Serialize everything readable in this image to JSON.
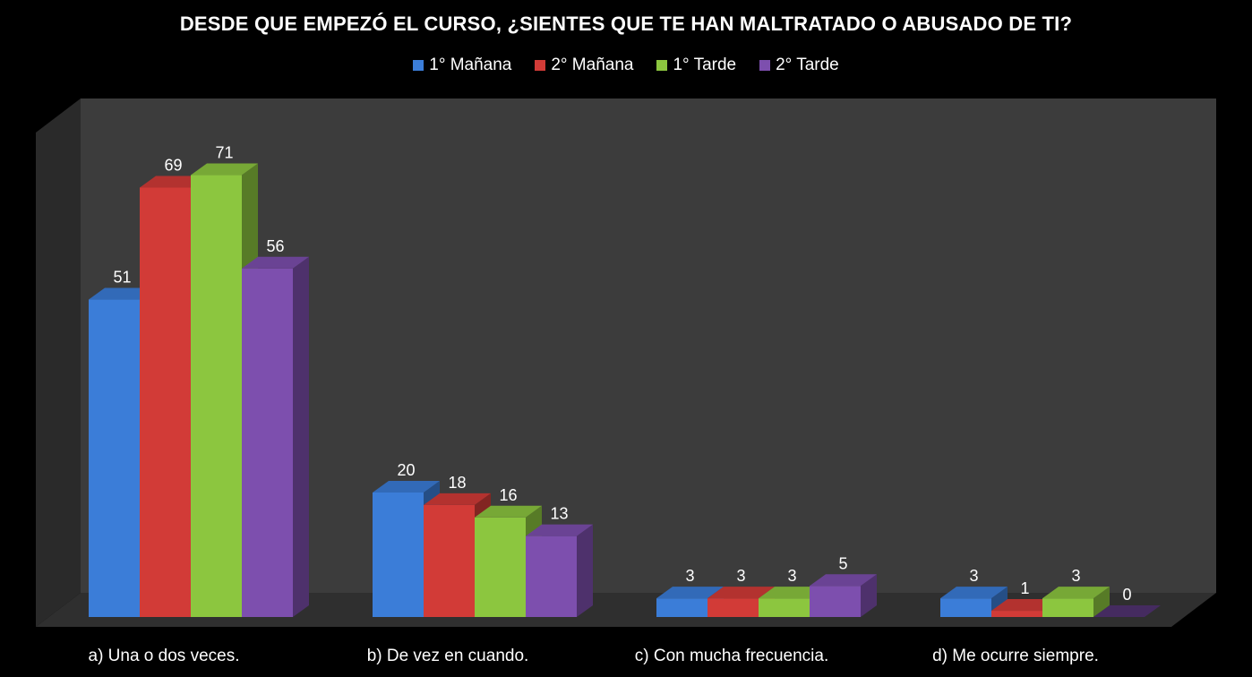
{
  "chart_data": {
    "type": "bar",
    "title": "DESDE QUE EMPEZÓ EL CURSO, ¿SIENTES QUE TE HAN MALTRATADO O ABUSADO DE TI?",
    "categories": [
      "a) Una o dos veces.",
      "b) De vez en cuando.",
      "c) Con mucha frecuencia.",
      "d) Me ocurre siempre."
    ],
    "series": [
      {
        "name": "1° Mañana",
        "values": [
          51,
          20,
          3,
          3
        ],
        "color": "#3B7DD8"
      },
      {
        "name": "2° Mañana",
        "values": [
          69,
          18,
          3,
          1
        ],
        "color": "#D23B37"
      },
      {
        "name": "1° Tarde",
        "values": [
          71,
          16,
          3,
          3
        ],
        "color": "#8CC63F"
      },
      {
        "name": "2° Tarde",
        "values": [
          56,
          13,
          5,
          0
        ],
        "color": "#7D4FAE"
      }
    ],
    "ylim": [
      0,
      80
    ],
    "legend": "top",
    "grid": false
  }
}
